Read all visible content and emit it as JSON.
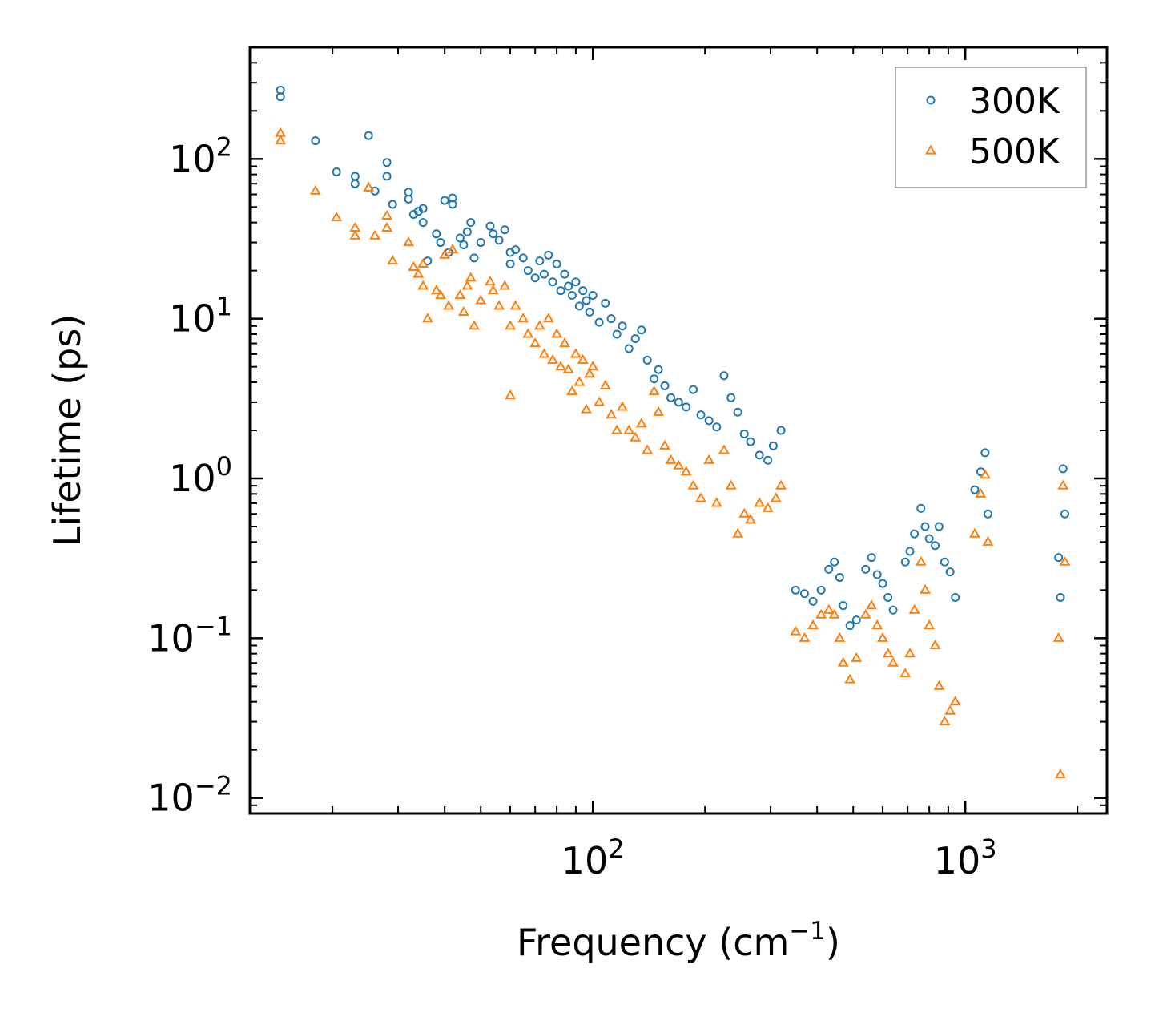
{
  "chart_data": {
    "type": "scatter",
    "xscale": "log",
    "yscale": "log",
    "xlim": [
      12,
      2400
    ],
    "ylim": [
      0.008,
      500
    ],
    "xlabel": {
      "main": "Frequency (cm",
      "sup": "−1",
      "close": ")"
    },
    "ylabel": "Lifetime (ps)",
    "grid": false,
    "legend_position": "top-right",
    "x_major_ticks": [
      {
        "value": 100,
        "base": "10",
        "exp": "2"
      },
      {
        "value": 1000,
        "base": "10",
        "exp": "3"
      }
    ],
    "y_major_ticks": [
      {
        "value": 0.01,
        "base": "10",
        "exp": "−2"
      },
      {
        "value": 0.1,
        "base": "10",
        "exp": "−1"
      },
      {
        "value": 1,
        "base": "10",
        "exp": "0"
      },
      {
        "value": 10,
        "base": "10",
        "exp": "1"
      },
      {
        "value": 100,
        "base": "10",
        "exp": "2"
      }
    ],
    "series": [
      {
        "name": "300K",
        "marker": "circle",
        "color": "#1f77b4",
        "points": [
          [
            14.5,
            270
          ],
          [
            14.5,
            245
          ],
          [
            18,
            130
          ],
          [
            20.5,
            83
          ],
          [
            23,
            78
          ],
          [
            23,
            70
          ],
          [
            25,
            140
          ],
          [
            26,
            63
          ],
          [
            28,
            95
          ],
          [
            28,
            78
          ],
          [
            29,
            52
          ],
          [
            32,
            62
          ],
          [
            32,
            56
          ],
          [
            33,
            45
          ],
          [
            34,
            47
          ],
          [
            35,
            40
          ],
          [
            35,
            49
          ],
          [
            36,
            23
          ],
          [
            38,
            34
          ],
          [
            39,
            30
          ],
          [
            40,
            55
          ],
          [
            41,
            26
          ],
          [
            42,
            57
          ],
          [
            42,
            52
          ],
          [
            44,
            32
          ],
          [
            45,
            29
          ],
          [
            46,
            35
          ],
          [
            47,
            40
          ],
          [
            48,
            24
          ],
          [
            50,
            30
          ],
          [
            53,
            38
          ],
          [
            54,
            34
          ],
          [
            56,
            31
          ],
          [
            58,
            36
          ],
          [
            60,
            22
          ],
          [
            60,
            26
          ],
          [
            62,
            27
          ],
          [
            65,
            24
          ],
          [
            67,
            20
          ],
          [
            70,
            18
          ],
          [
            72,
            23
          ],
          [
            74,
            19
          ],
          [
            76,
            25
          ],
          [
            78,
            17
          ],
          [
            80,
            22
          ],
          [
            82,
            15
          ],
          [
            84,
            19
          ],
          [
            86,
            16
          ],
          [
            88,
            14
          ],
          [
            90,
            17
          ],
          [
            92,
            12
          ],
          [
            94,
            15
          ],
          [
            96,
            13
          ],
          [
            98,
            11
          ],
          [
            100,
            14
          ],
          [
            104,
            9.5
          ],
          [
            108,
            12.5
          ],
          [
            112,
            10
          ],
          [
            116,
            8
          ],
          [
            120,
            9
          ],
          [
            125,
            6.5
          ],
          [
            130,
            7.5
          ],
          [
            135,
            8.5
          ],
          [
            140,
            5.5
          ],
          [
            146,
            4.2
          ],
          [
            150,
            4.8
          ],
          [
            156,
            3.8
          ],
          [
            162,
            3.2
          ],
          [
            170,
            3
          ],
          [
            178,
            2.8
          ],
          [
            186,
            3.6
          ],
          [
            195,
            2.5
          ],
          [
            205,
            2.3
          ],
          [
            215,
            2.1
          ],
          [
            225,
            4.4
          ],
          [
            235,
            3.2
          ],
          [
            245,
            2.6
          ],
          [
            255,
            1.9
          ],
          [
            265,
            1.7
          ],
          [
            280,
            1.4
          ],
          [
            295,
            1.3
          ],
          [
            305,
            1.6
          ],
          [
            320,
            2
          ],
          [
            350,
            0.2
          ],
          [
            370,
            0.19
          ],
          [
            390,
            0.17
          ],
          [
            410,
            0.2
          ],
          [
            430,
            0.27
          ],
          [
            445,
            0.3
          ],
          [
            460,
            0.24
          ],
          [
            470,
            0.16
          ],
          [
            490,
            0.12
          ],
          [
            510,
            0.13
          ],
          [
            540,
            0.27
          ],
          [
            560,
            0.32
          ],
          [
            580,
            0.25
          ],
          [
            600,
            0.22
          ],
          [
            620,
            0.18
          ],
          [
            640,
            0.15
          ],
          [
            690,
            0.3
          ],
          [
            710,
            0.35
          ],
          [
            730,
            0.45
          ],
          [
            760,
            0.65
          ],
          [
            780,
            0.5
          ],
          [
            800,
            0.42
          ],
          [
            830,
            0.38
          ],
          [
            850,
            0.5
          ],
          [
            880,
            0.3
          ],
          [
            910,
            0.26
          ],
          [
            940,
            0.18
          ],
          [
            1060,
            0.85
          ],
          [
            1100,
            1.1
          ],
          [
            1130,
            1.45
          ],
          [
            1150,
            0.6
          ],
          [
            1780,
            0.32
          ],
          [
            1800,
            0.18
          ],
          [
            1830,
            1.15
          ],
          [
            1850,
            0.6
          ]
        ]
      },
      {
        "name": "500K",
        "marker": "triangle",
        "color": "#ff7f0e",
        "points": [
          [
            14.5,
            145
          ],
          [
            14.5,
            130
          ],
          [
            18,
            63
          ],
          [
            20.5,
            43
          ],
          [
            23,
            37
          ],
          [
            23,
            33
          ],
          [
            25,
            66
          ],
          [
            26,
            33
          ],
          [
            28,
            44
          ],
          [
            28,
            37
          ],
          [
            29,
            23
          ],
          [
            32,
            30
          ],
          [
            33,
            21
          ],
          [
            34,
            19
          ],
          [
            35,
            16
          ],
          [
            35,
            22
          ],
          [
            36,
            10
          ],
          [
            38,
            15
          ],
          [
            39,
            14
          ],
          [
            40,
            25
          ],
          [
            41,
            12
          ],
          [
            42,
            27
          ],
          [
            44,
            14
          ],
          [
            45,
            11
          ],
          [
            46,
            16
          ],
          [
            47,
            18
          ],
          [
            48,
            9
          ],
          [
            50,
            13
          ],
          [
            53,
            17
          ],
          [
            54,
            15
          ],
          [
            56,
            12
          ],
          [
            58,
            16
          ],
          [
            60,
            9
          ],
          [
            60,
            3.3
          ],
          [
            62,
            12
          ],
          [
            65,
            10
          ],
          [
            67,
            8
          ],
          [
            70,
            7
          ],
          [
            72,
            9
          ],
          [
            74,
            6
          ],
          [
            76,
            10
          ],
          [
            78,
            5.5
          ],
          [
            80,
            8
          ],
          [
            82,
            5
          ],
          [
            84,
            7
          ],
          [
            86,
            4.8
          ],
          [
            88,
            3.5
          ],
          [
            90,
            6
          ],
          [
            92,
            4
          ],
          [
            94,
            5.5
          ],
          [
            96,
            2.7
          ],
          [
            98,
            4.5
          ],
          [
            100,
            5
          ],
          [
            104,
            3
          ],
          [
            108,
            3.8
          ],
          [
            112,
            2.5
          ],
          [
            116,
            2
          ],
          [
            120,
            2.8
          ],
          [
            125,
            2
          ],
          [
            130,
            1.8
          ],
          [
            135,
            2.2
          ],
          [
            140,
            1.5
          ],
          [
            146,
            3.5
          ],
          [
            150,
            2.6
          ],
          [
            156,
            1.6
          ],
          [
            162,
            1.3
          ],
          [
            170,
            1.2
          ],
          [
            178,
            1.1
          ],
          [
            186,
            0.9
          ],
          [
            195,
            0.75
          ],
          [
            205,
            1.3
          ],
          [
            215,
            0.7
          ],
          [
            225,
            1.5
          ],
          [
            235,
            0.9
          ],
          [
            245,
            0.45
          ],
          [
            255,
            0.6
          ],
          [
            265,
            0.55
          ],
          [
            280,
            0.7
          ],
          [
            295,
            0.65
          ],
          [
            310,
            0.75
          ],
          [
            320,
            0.9
          ],
          [
            350,
            0.11
          ],
          [
            370,
            0.1
          ],
          [
            390,
            0.12
          ],
          [
            410,
            0.14
          ],
          [
            430,
            0.15
          ],
          [
            445,
            0.14
          ],
          [
            460,
            0.1
          ],
          [
            470,
            0.07
          ],
          [
            490,
            0.055
          ],
          [
            510,
            0.075
          ],
          [
            540,
            0.14
          ],
          [
            560,
            0.16
          ],
          [
            580,
            0.12
          ],
          [
            600,
            0.1
          ],
          [
            620,
            0.08
          ],
          [
            640,
            0.07
          ],
          [
            690,
            0.06
          ],
          [
            710,
            0.08
          ],
          [
            730,
            0.15
          ],
          [
            760,
            0.3
          ],
          [
            780,
            0.2
          ],
          [
            800,
            0.12
          ],
          [
            830,
            0.09
          ],
          [
            850,
            0.05
          ],
          [
            880,
            0.03
          ],
          [
            910,
            0.035
          ],
          [
            940,
            0.04
          ],
          [
            1060,
            0.45
          ],
          [
            1100,
            0.8
          ],
          [
            1130,
            1.05
          ],
          [
            1150,
            0.4
          ],
          [
            1780,
            0.1
          ],
          [
            1800,
            0.014
          ],
          [
            1830,
            0.9
          ],
          [
            1850,
            0.3
          ]
        ]
      }
    ]
  }
}
